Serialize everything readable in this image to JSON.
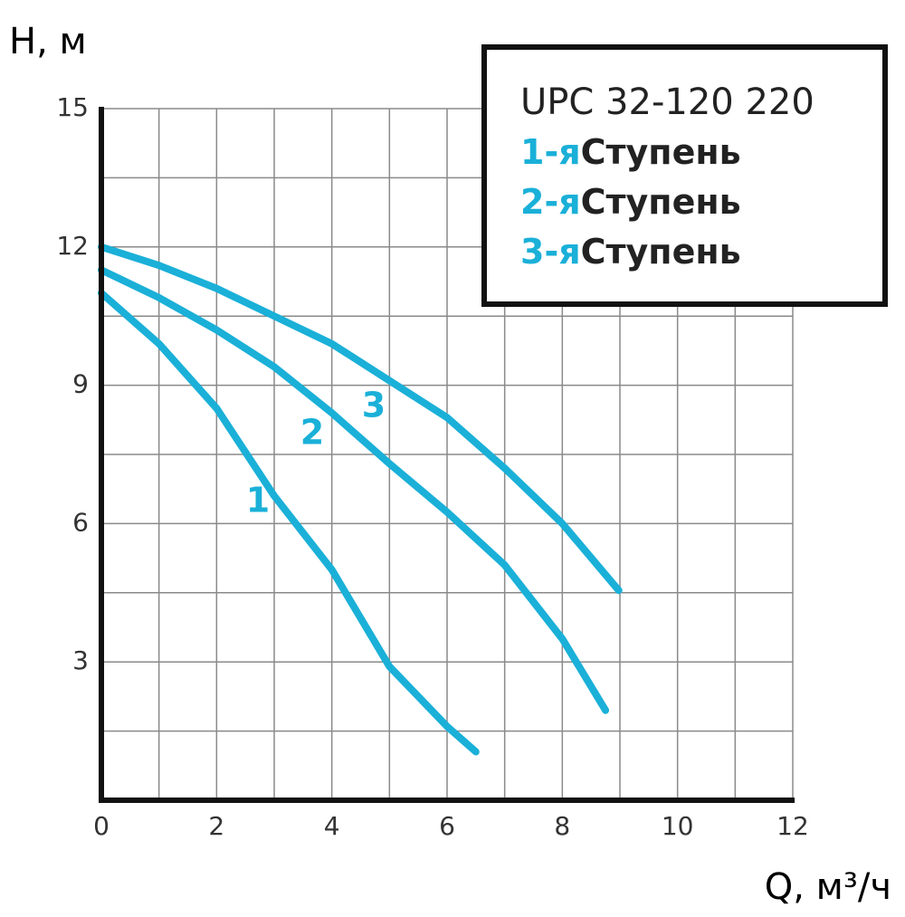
{
  "chart_data": {
    "type": "line",
    "y_label": "H, м",
    "x_label": "Q, м³/ч",
    "xlim": [
      0,
      12
    ],
    "ylim": [
      0,
      15
    ],
    "xticks": [
      0,
      2,
      4,
      6,
      8,
      10,
      12
    ],
    "yticks": [
      3,
      6,
      9,
      12,
      15
    ],
    "xgrid": [
      1,
      2,
      3,
      4,
      5,
      6,
      7,
      8,
      9,
      10,
      11,
      12
    ],
    "ygrid": [
      1.5,
      3,
      4.5,
      6,
      7.5,
      9,
      10.5,
      12,
      13.5,
      15
    ],
    "legend_title": "UPC 32-120 220",
    "legend_entries": [
      {
        "marker": "1-я",
        "text": "Ступень"
      },
      {
        "marker": "2-я",
        "text": "Ступень"
      },
      {
        "marker": "3-я",
        "text": "Ступень"
      }
    ],
    "series": [
      {
        "name": "1",
        "color": "#1ab0d8",
        "x": [
          0,
          1,
          2,
          3,
          4,
          5,
          6,
          6.5
        ],
        "values": [
          11,
          9.9,
          8.5,
          6.6,
          5.0,
          2.9,
          1.6,
          1.05
        ]
      },
      {
        "name": "2",
        "color": "#1ab0d8",
        "x": [
          0,
          1,
          2,
          3,
          4,
          5,
          6,
          7,
          8,
          8.75
        ],
        "values": [
          11.5,
          10.9,
          10.2,
          9.4,
          8.4,
          7.3,
          6.25,
          5.1,
          3.5,
          1.95
        ]
      },
      {
        "name": "3",
        "color": "#1ab0d8",
        "x": [
          0,
          1,
          2,
          3,
          4,
          5,
          6,
          7,
          8,
          8.98
        ],
        "values": [
          12,
          11.6,
          11.1,
          10.5,
          9.9,
          9.1,
          8.3,
          7.2,
          6.0,
          4.55
        ]
      }
    ]
  }
}
